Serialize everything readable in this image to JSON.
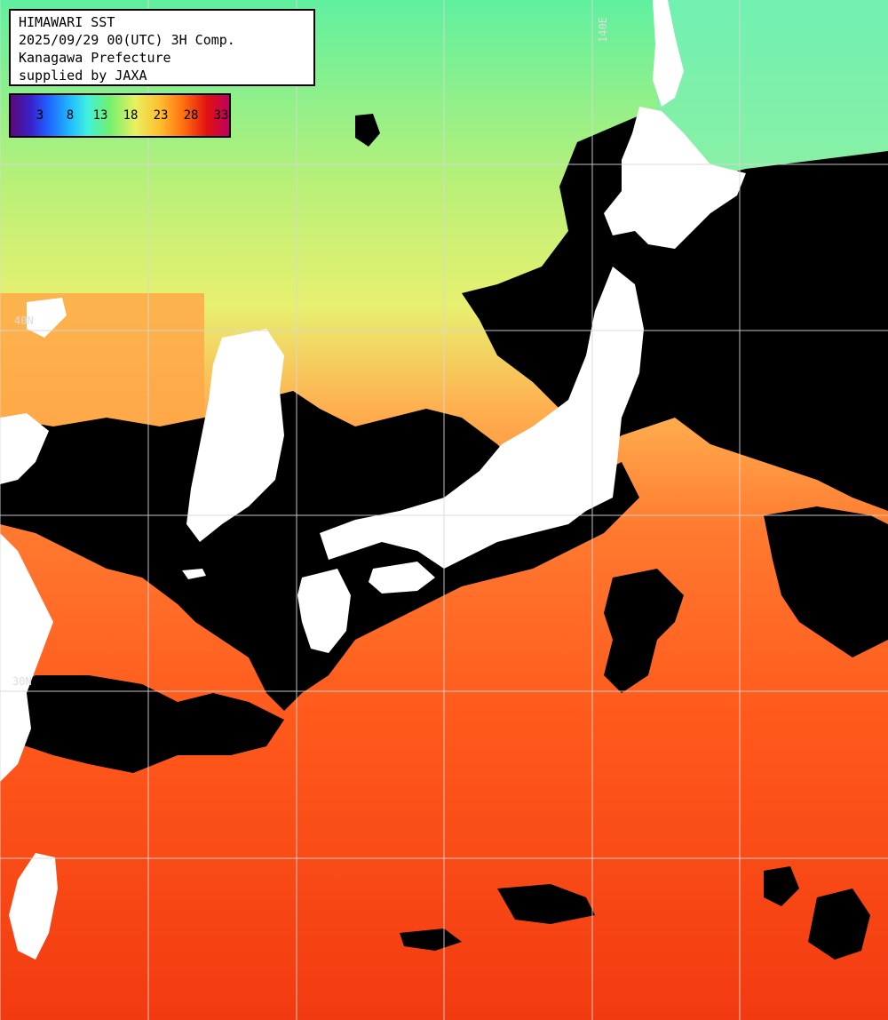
{
  "info": {
    "title": "HIMAWARI SST",
    "datetime": "2025/09/29 00(UTC) 3H Comp.",
    "region": "Kanagawa Prefecture",
    "supplier": "supplied by JAXA"
  },
  "colorbar": {
    "ticks": [
      "3",
      "8",
      "13",
      "18",
      "23",
      "28",
      "33"
    ],
    "colors": [
      "#5a0a78",
      "#2060ff",
      "#40f0e0",
      "#70f070",
      "#ffc030",
      "#ff7010",
      "#c00060"
    ]
  },
  "grid_labels": {
    "lat_a": "40N",
    "lat_b": "30N",
    "lon_a": "140E"
  },
  "colors": {
    "cloud_mask": "#000000",
    "land": "#ffffff",
    "grid": "#d8d8d8",
    "sst_warm": "#ff4a14",
    "sst_mid": "#ff9a3a",
    "sst_cool": "#e8f070",
    "sst_cold": "#60f0a0"
  }
}
